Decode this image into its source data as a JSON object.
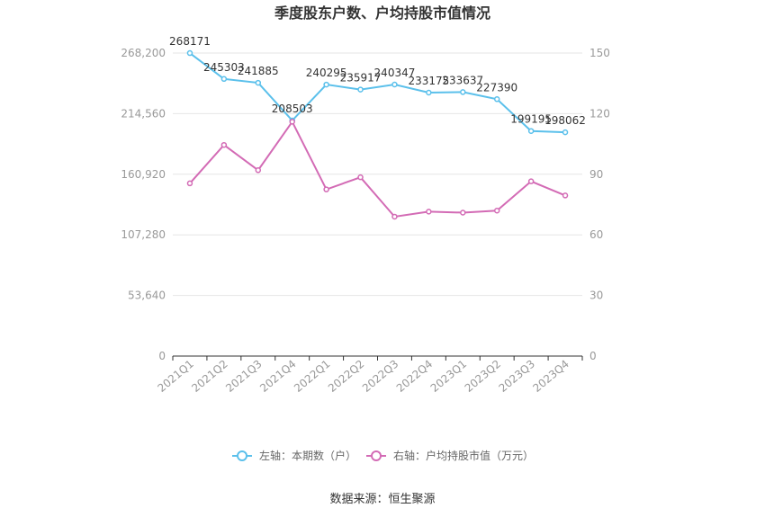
{
  "chart_data": {
    "type": "line",
    "title": "季度股东户数、户均持股市值情况",
    "categories": [
      "2021Q1",
      "2021Q2",
      "2021Q3",
      "2021Q4",
      "2022Q1",
      "2022Q2",
      "2022Q3",
      "2022Q4",
      "2023Q1",
      "2023Q2",
      "2023Q3",
      "2023Q4"
    ],
    "y_left": {
      "ticks": [
        "0",
        "53,640",
        "107,280",
        "160,920",
        "214,560",
        "268,200"
      ],
      "range": [
        0,
        268200
      ]
    },
    "y_right": {
      "ticks": [
        "0",
        "30",
        "60",
        "90",
        "120",
        "150"
      ],
      "range": [
        0,
        150
      ]
    },
    "series": [
      {
        "name": "左轴：本期数（户）",
        "axis": "left",
        "color": "#5bc0eb",
        "values": [
          268171,
          245303,
          241885,
          208503,
          240295,
          235917,
          240347,
          233175,
          233637,
          227390,
          199195,
          198062
        ],
        "labels": [
          "268171",
          "245303",
          "241885",
          "208503",
          "240295",
          "235917",
          "240347",
          "233175",
          "233637",
          "227390",
          "199195",
          "198062"
        ]
      },
      {
        "name": "右轴：户均持股市值（万元）",
        "axis": "right",
        "color": "#d36bb5",
        "values": [
          85.5,
          104.5,
          92.0,
          116.0,
          82.5,
          88.5,
          69.0,
          71.5,
          71.0,
          72.0,
          86.5,
          79.5
        ]
      }
    ],
    "grid": true,
    "legend_position": "bottom"
  },
  "footer": {
    "source": "数据来源：恒生聚源"
  }
}
